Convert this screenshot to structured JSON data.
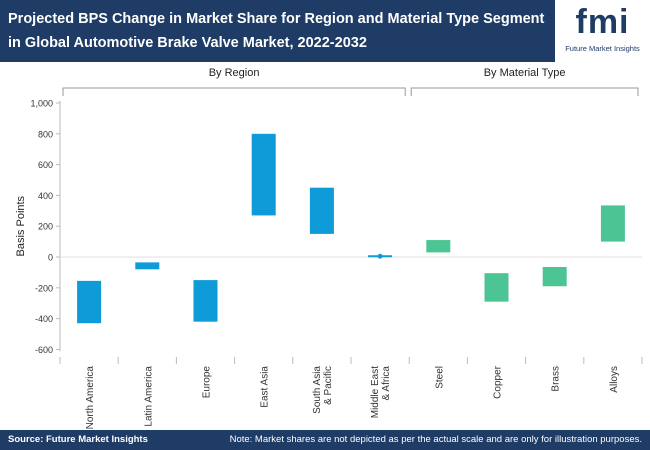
{
  "header": {
    "title": "Projected BPS Change in Market Share for Region and Material Type Segment in Global Automotive Brake Valve Market, 2022-2032",
    "logo_word": "fmi",
    "logo_sub": "Future Market Insights"
  },
  "footer": {
    "source": "Source: Future Market Insights",
    "note": "Note: Market shares are not depicted as per the actual scale and are only for illustration purposes."
  },
  "colors": {
    "region": "#0e9bd7",
    "material": "#4dc494",
    "header_bg": "#1e3c66"
  },
  "chart_data": {
    "type": "bar",
    "style": "floating",
    "ylabel": "Basis Points",
    "ylim": [
      -600,
      1000
    ],
    "yticks": [
      -600,
      -400,
      -200,
      0,
      200,
      400,
      600,
      800,
      1000
    ],
    "ytick_labels": [
      "-600",
      "-400",
      "-200",
      "0",
      "200",
      "400",
      "600",
      "800",
      "1,000"
    ],
    "groups": [
      {
        "label": "By Region",
        "start": 0,
        "end": 5
      },
      {
        "label": "By Material Type",
        "start": 6,
        "end": 9
      }
    ],
    "categories": [
      "North America",
      "Latin America",
      "Europe",
      "East Asia",
      "South Asia & Pacific",
      "Middle East & Africa",
      "Steel",
      "Copper",
      "Brass",
      "Alloys"
    ],
    "bars": [
      {
        "low": -430,
        "high": -155
      },
      {
        "low": -80,
        "high": -35
      },
      {
        "low": -420,
        "high": -150
      },
      {
        "low": 270,
        "high": 800
      },
      {
        "low": 150,
        "high": 450
      },
      {
        "low": 0,
        "high": 10
      },
      {
        "low": 30,
        "high": 110
      },
      {
        "low": -290,
        "high": -105
      },
      {
        "low": -190,
        "high": -65
      },
      {
        "low": 100,
        "high": 335
      }
    ]
  }
}
